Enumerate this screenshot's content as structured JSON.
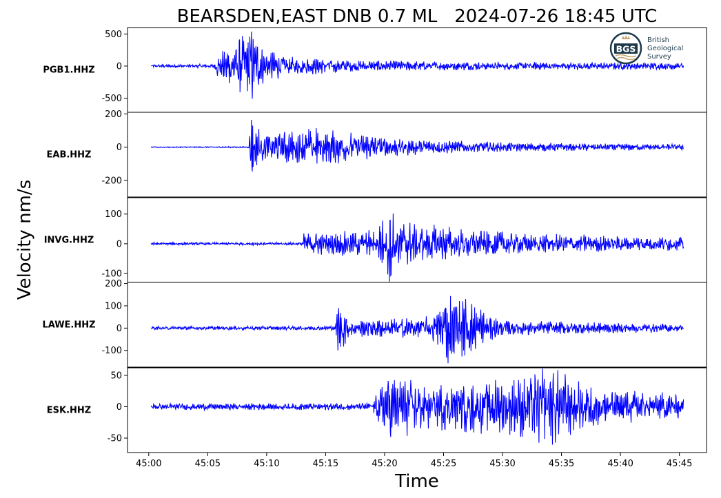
{
  "chart_data": {
    "type": "line",
    "title": "BEARSDEN,EAST DNB 0.7 ML   2024-07-26 18:45 UTC",
    "ylabel": "Velocity nm/s",
    "xlabel": "Time",
    "x_start": 0.2,
    "x_end": 45.35,
    "xlim": [
      -1.8,
      47.3
    ],
    "x_ticks": [
      0,
      5,
      10,
      15,
      20,
      25,
      30,
      35,
      40,
      45
    ],
    "x_tick_labels": [
      "45:00",
      "45:05",
      "45:10",
      "45:15",
      "45:20",
      "45:25",
      "45:30",
      "45:35",
      "45:40",
      "45:45"
    ],
    "line_color": "#0000ff",
    "grid": false,
    "series": [
      {
        "name": "PGB1.HHZ",
        "ylim": [
          -720,
          600
        ],
        "y_ticks": [
          500,
          0,
          -500
        ],
        "y_tick_labels": [
          "500",
          "0",
          "-500"
        ],
        "noise": 25,
        "envelope": [
          [
            0,
            25
          ],
          [
            5.5,
            30
          ],
          [
            5.9,
            200
          ],
          [
            7.2,
            380
          ],
          [
            8.6,
            650
          ],
          [
            9.5,
            300
          ],
          [
            12,
            150
          ],
          [
            18,
            90
          ],
          [
            30,
            60
          ],
          [
            45.35,
            55
          ]
        ]
      },
      {
        "name": "EAB.HHZ",
        "ylim": [
          -300,
          210
        ],
        "y_ticks": [
          200,
          0,
          -200
        ],
        "y_tick_labels": [
          "200",
          "0",
          "-200"
        ],
        "noise": 3,
        "envelope": [
          [
            0,
            3
          ],
          [
            8.5,
            4
          ],
          [
            8.7,
            280
          ],
          [
            9.5,
            90
          ],
          [
            12.5,
            100
          ],
          [
            14.4,
            130
          ],
          [
            17,
            90
          ],
          [
            22,
            50
          ],
          [
            30,
            28
          ],
          [
            45.35,
            18
          ]
        ]
      },
      {
        "name": "INVG.HHZ",
        "ylim": [
          -130,
          155
        ],
        "y_ticks": [
          100,
          0,
          -100
        ],
        "y_tick_labels": [
          "100",
          "0",
          "-100"
        ],
        "noise": 4,
        "envelope": [
          [
            0,
            5
          ],
          [
            12.9,
            5
          ],
          [
            13.1,
            35
          ],
          [
            19.3,
            45
          ],
          [
            20.4,
            150
          ],
          [
            21.2,
            75
          ],
          [
            26,
            55
          ],
          [
            32,
            35
          ],
          [
            45.35,
            22
          ]
        ]
      },
      {
        "name": "LAWE.HHZ",
        "ylim": [
          -175,
          205
        ],
        "y_ticks": [
          200,
          100,
          0,
          -100
        ],
        "y_tick_labels": [
          "200",
          "100",
          "0",
          "-100"
        ],
        "noise": 8,
        "envelope": [
          [
            0,
            8
          ],
          [
            15.8,
            10
          ],
          [
            16.1,
            140
          ],
          [
            17,
            40
          ],
          [
            24,
            50
          ],
          [
            25.2,
            190
          ],
          [
            27.5,
            110
          ],
          [
            30,
            35
          ],
          [
            45.35,
            18
          ]
        ]
      },
      {
        "name": "ESK.HHZ",
        "ylim": [
          -73,
          62
        ],
        "y_ticks": [
          50,
          0,
          -50
        ],
        "y_tick_labels": [
          "50",
          "0",
          "-50"
        ],
        "noise": 5,
        "envelope": [
          [
            0,
            5
          ],
          [
            18.9,
            6
          ],
          [
            20.3,
            52
          ],
          [
            24,
            38
          ],
          [
            30,
            45
          ],
          [
            33,
            65
          ],
          [
            35,
            60
          ],
          [
            38,
            30
          ],
          [
            45.35,
            20
          ]
        ]
      }
    ]
  },
  "logo": {
    "abbr": "BGS",
    "name_lines": [
      "British",
      "Geological",
      "Survey"
    ]
  }
}
